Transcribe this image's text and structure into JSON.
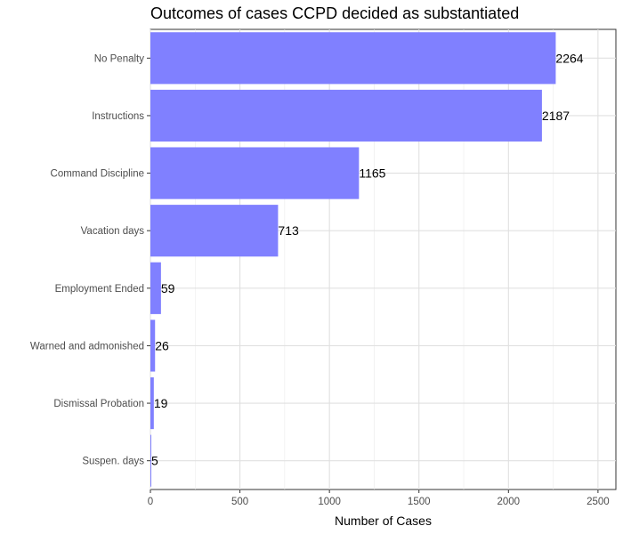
{
  "chart_data": {
    "type": "bar",
    "orientation": "horizontal",
    "title": "Outcomes of cases CCPD decided as substantiated",
    "xlabel": "Number of Cases",
    "ylabel": "",
    "xlim": [
      0,
      2600
    ],
    "x_ticks": [
      0,
      500,
      1000,
      1500,
      2000,
      2500
    ],
    "x_tick_labels": [
      "0",
      "500",
      "1000",
      "1500",
      "2000",
      "2500"
    ],
    "grid": true,
    "legend": "none",
    "bar_color": "#8080ff",
    "categories": [
      "No Penalty",
      "Instructions",
      "Command Discipline",
      "Vacation days",
      "Employment Ended",
      "Warned and admonished",
      "Dismissal Probation",
      "Suspen. days"
    ],
    "values": [
      2264,
      2187,
      1165,
      713,
      59,
      26,
      19,
      5
    ],
    "data_labels": [
      "2264",
      "2187",
      "1165",
      "713",
      "59",
      "26",
      "19",
      "5"
    ]
  }
}
